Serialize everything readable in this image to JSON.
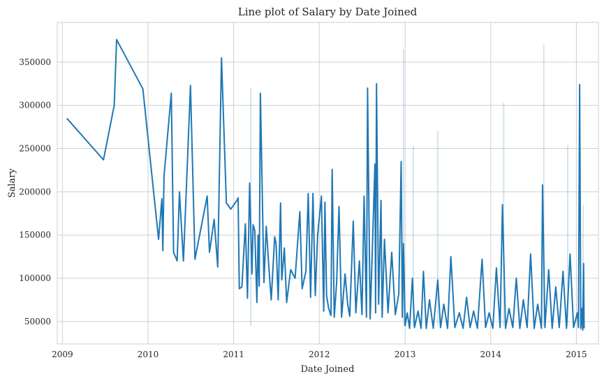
{
  "chart_data": {
    "type": "line",
    "title": "Line plot of Salary by Date Joined",
    "xlabel": "Date Joined",
    "ylabel": "Salary",
    "x_range": [
      "2008-12-10",
      "2015-04-05"
    ],
    "ylim": [
      24000,
      396000
    ],
    "x_ticks": [
      {
        "date": "2009-01-01",
        "label": "2009"
      },
      {
        "date": "2010-01-01",
        "label": "2010"
      },
      {
        "date": "2011-01-01",
        "label": "2011"
      },
      {
        "date": "2012-01-01",
        "label": "2012"
      },
      {
        "date": "2013-01-01",
        "label": "2013"
      },
      {
        "date": "2014-01-01",
        "label": "2014"
      },
      {
        "date": "2015-01-01",
        "label": "2015"
      }
    ],
    "y_ticks": [
      {
        "value": 50000,
        "label": "50000"
      },
      {
        "value": 100000,
        "label": "100000"
      },
      {
        "value": 150000,
        "label": "150000"
      },
      {
        "value": 200000,
        "label": "200000"
      },
      {
        "value": 250000,
        "label": "250000"
      },
      {
        "value": 300000,
        "label": "300000"
      },
      {
        "value": 350000,
        "label": "350000"
      }
    ],
    "grid": true,
    "line_color": "#1f77b4",
    "band_color": "#1f77b4",
    "band_opacity": 0.2,
    "series": [
      {
        "points": [
          [
            "2009-01-20",
            285000
          ],
          [
            "2009-06-25",
            237000
          ],
          [
            "2009-08-10",
            300000
          ],
          [
            "2009-08-20",
            376000
          ],
          [
            "2009-12-10",
            319000
          ],
          [
            "2010-02-15",
            145000
          ],
          [
            "2010-03-01",
            192000
          ],
          [
            "2010-03-05",
            132000
          ],
          [
            "2010-03-10",
            218000
          ],
          [
            "2010-04-10",
            314000
          ],
          [
            "2010-04-20",
            130000
          ],
          [
            "2010-05-05",
            120000
          ],
          [
            "2010-05-15",
            200000
          ],
          [
            "2010-06-01",
            120000
          ],
          [
            "2010-07-01",
            323000
          ],
          [
            "2010-07-20",
            122000
          ],
          [
            "2010-09-10",
            195000
          ],
          [
            "2010-09-20",
            130000
          ],
          [
            "2010-10-10",
            168000
          ],
          [
            "2010-10-25",
            113000
          ],
          [
            "2010-11-10",
            355000
          ],
          [
            "2010-12-01",
            187000
          ],
          [
            "2010-12-20",
            180000
          ],
          [
            "2011-01-15",
            190000
          ],
          [
            "2011-01-20",
            193000
          ],
          [
            "2011-01-25",
            88000
          ],
          [
            "2011-02-05",
            90000
          ],
          [
            "2011-02-20",
            163000
          ],
          [
            "2011-03-01",
            77000
          ],
          [
            "2011-03-10",
            210000
          ],
          [
            "2011-03-20",
            105000
          ],
          [
            "2011-03-25",
            162000
          ],
          [
            "2011-04-01",
            155000
          ],
          [
            "2011-04-10",
            72000
          ],
          [
            "2011-04-15",
            150000
          ],
          [
            "2011-04-20",
            91000
          ],
          [
            "2011-04-25",
            314000
          ],
          [
            "2011-05-10",
            95000
          ],
          [
            "2011-05-20",
            160000
          ],
          [
            "2011-06-01",
            110000
          ],
          [
            "2011-06-10",
            75000
          ],
          [
            "2011-06-25",
            148000
          ],
          [
            "2011-07-01",
            140000
          ],
          [
            "2011-07-10",
            75000
          ],
          [
            "2011-07-20",
            187000
          ],
          [
            "2011-07-25",
            98000
          ],
          [
            "2011-08-05",
            135000
          ],
          [
            "2011-08-15",
            72000
          ],
          [
            "2011-09-01",
            110000
          ],
          [
            "2011-09-20",
            100000
          ],
          [
            "2011-10-10",
            177000
          ],
          [
            "2011-10-20",
            88000
          ],
          [
            "2011-11-05",
            108000
          ],
          [
            "2011-11-15",
            198000
          ],
          [
            "2011-11-25",
            78000
          ],
          [
            "2011-12-05",
            198000
          ],
          [
            "2011-12-15",
            80000
          ],
          [
            "2011-12-25",
            150000
          ],
          [
            "2012-01-10",
            195000
          ],
          [
            "2012-01-20",
            62000
          ],
          [
            "2012-01-25",
            188000
          ],
          [
            "2012-02-01",
            80000
          ],
          [
            "2012-02-10",
            65000
          ],
          [
            "2012-02-20",
            57000
          ],
          [
            "2012-02-25",
            226000
          ],
          [
            "2012-03-05",
            55000
          ],
          [
            "2012-03-15",
            95000
          ],
          [
            "2012-03-25",
            183000
          ],
          [
            "2012-04-05",
            55000
          ],
          [
            "2012-04-20",
            105000
          ],
          [
            "2012-05-01",
            70000
          ],
          [
            "2012-05-10",
            56000
          ],
          [
            "2012-05-25",
            166000
          ],
          [
            "2012-06-05",
            60000
          ],
          [
            "2012-06-20",
            120000
          ],
          [
            "2012-07-01",
            58000
          ],
          [
            "2012-07-10",
            195000
          ],
          [
            "2012-07-20",
            55000
          ],
          [
            "2012-07-25",
            320000
          ],
          [
            "2012-08-05",
            53000
          ],
          [
            "2012-08-15",
            140000
          ],
          [
            "2012-08-25",
            232000
          ],
          [
            "2012-08-28",
            60000
          ],
          [
            "2012-09-01",
            325000
          ],
          [
            "2012-09-10",
            70000
          ],
          [
            "2012-09-20",
            190000
          ],
          [
            "2012-09-25",
            55000
          ],
          [
            "2012-10-05",
            145000
          ],
          [
            "2012-10-20",
            60000
          ],
          [
            "2012-11-05",
            130000
          ],
          [
            "2012-11-20",
            58000
          ],
          [
            "2012-12-05",
            82000
          ],
          [
            "2012-12-15",
            235000
          ],
          [
            "2012-12-20",
            55000
          ],
          [
            "2012-12-25",
            140000
          ],
          [
            "2013-01-01",
            45000
          ],
          [
            "2013-01-10",
            60000
          ],
          [
            "2013-01-20",
            42000
          ],
          [
            "2013-02-01",
            100000
          ],
          [
            "2013-02-10",
            43000
          ],
          [
            "2013-02-25",
            62000
          ],
          [
            "2013-03-10",
            42000
          ],
          [
            "2013-03-20",
            108000
          ],
          [
            "2013-04-01",
            42000
          ],
          [
            "2013-04-15",
            75000
          ],
          [
            "2013-05-01",
            42000
          ],
          [
            "2013-05-20",
            98000
          ],
          [
            "2013-06-01",
            43000
          ],
          [
            "2013-06-15",
            70000
          ],
          [
            "2013-07-01",
            42000
          ],
          [
            "2013-07-15",
            125000
          ],
          [
            "2013-08-01",
            43000
          ],
          [
            "2013-08-20",
            60000
          ],
          [
            "2013-09-05",
            42000
          ],
          [
            "2013-09-20",
            78000
          ],
          [
            "2013-10-05",
            43000
          ],
          [
            "2013-10-20",
            62000
          ],
          [
            "2013-11-05",
            42000
          ],
          [
            "2013-11-25",
            122000
          ],
          [
            "2013-12-10",
            43000
          ],
          [
            "2013-12-25",
            60000
          ],
          [
            "2014-01-10",
            42000
          ],
          [
            "2014-01-25",
            112000
          ],
          [
            "2014-02-10",
            43000
          ],
          [
            "2014-02-20",
            185000
          ],
          [
            "2014-03-05",
            42000
          ],
          [
            "2014-03-20",
            65000
          ],
          [
            "2014-04-05",
            43000
          ],
          [
            "2014-04-20",
            100000
          ],
          [
            "2014-05-05",
            42000
          ],
          [
            "2014-05-20",
            75000
          ],
          [
            "2014-06-05",
            43000
          ],
          [
            "2014-06-20",
            128000
          ],
          [
            "2014-07-05",
            42000
          ],
          [
            "2014-07-20",
            70000
          ],
          [
            "2014-08-05",
            42000
          ],
          [
            "2014-08-10",
            208000
          ],
          [
            "2014-08-20",
            43000
          ],
          [
            "2014-09-05",
            110000
          ],
          [
            "2014-09-20",
            42000
          ],
          [
            "2014-10-05",
            90000
          ],
          [
            "2014-10-20",
            43000
          ],
          [
            "2014-11-05",
            108000
          ],
          [
            "2014-11-20",
            42000
          ],
          [
            "2014-12-05",
            128000
          ],
          [
            "2014-12-20",
            43000
          ],
          [
            "2015-01-05",
            60000
          ],
          [
            "2015-01-10",
            43000
          ],
          [
            "2015-01-15",
            324000
          ],
          [
            "2015-01-20",
            42000
          ],
          [
            "2015-01-25",
            65000
          ],
          [
            "2015-01-28",
            40000
          ],
          [
            "2015-02-01",
            117000
          ],
          [
            "2015-02-03",
            42000
          ]
        ]
      }
    ],
    "band_spikes": [
      [
        "2011-03-15",
        320000
      ],
      [
        "2012-12-25",
        365000
      ],
      [
        "2013-02-05",
        253000
      ],
      [
        "2013-05-20",
        271000
      ],
      [
        "2014-02-25",
        303000
      ],
      [
        "2014-08-15",
        370000
      ],
      [
        "2014-11-25",
        254000
      ],
      [
        "2015-01-30",
        185000
      ]
    ]
  }
}
